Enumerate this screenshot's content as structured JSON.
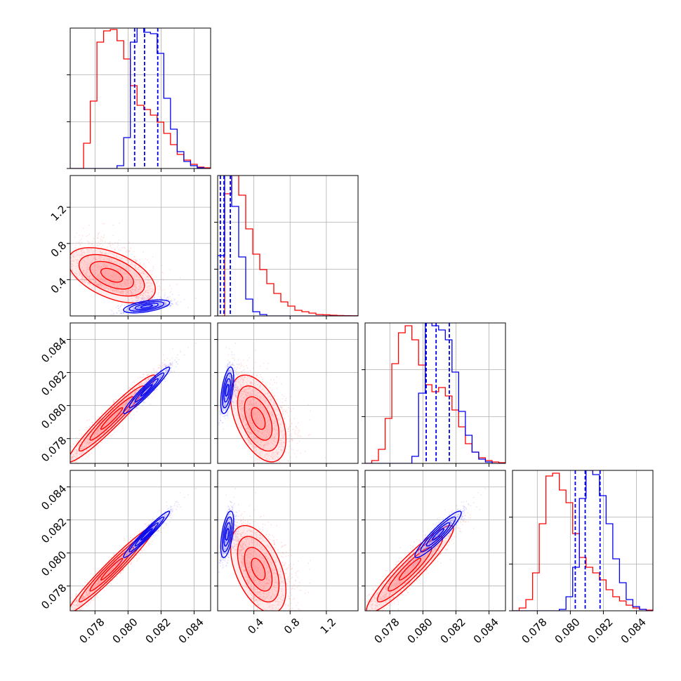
{
  "chart_data": {
    "type": "corner",
    "grid": true,
    "colors": {
      "red": "#ff0000",
      "blue": "#0000ee",
      "red_fill": "#ff9a9a",
      "scatter_red": "#ff8080",
      "scatter_blue": "#8080ff"
    },
    "params": [
      {
        "range": [
          0.0765,
          0.085
        ],
        "ticks": [
          0.078,
          0.08,
          0.082,
          0.084
        ],
        "tick_labels": [
          "0.078",
          "0.080",
          "0.082",
          "0.084"
        ]
      },
      {
        "range": [
          0.0,
          1.55
        ],
        "ticks": [
          0.4,
          0.8,
          1.2
        ],
        "tick_labels": [
          "0.4",
          "0.8",
          "1.2"
        ]
      },
      {
        "range": [
          0.0765,
          0.085
        ],
        "ticks": [
          0.078,
          0.08,
          0.082,
          0.084
        ],
        "tick_labels": [
          "0.078",
          "0.080",
          "0.082",
          "0.084"
        ]
      },
      {
        "range": [
          0.0765,
          0.085
        ],
        "ticks": [
          0.078,
          0.08,
          0.082,
          0.084
        ],
        "tick_labels": [
          "0.078",
          "0.080",
          "0.082",
          "0.084"
        ]
      }
    ],
    "series": [
      {
        "color": "red",
        "means": [
          0.079,
          0.33,
          0.0792,
          0.079
        ],
        "sds": [
          0.0013,
          0.18,
          0.0013,
          0.0013
        ],
        "hist": [
          [
            0,
            0,
            0.18,
            0.48,
            0.9,
            0.98,
            0.99,
            0.91,
            0.78,
            0.59,
            0.45,
            0.42,
            0.38,
            0.33,
            0.25,
            0.17,
            0.1,
            0.06,
            0.03,
            0.01,
            0.005
          ],
          [
            0.0,
            0.87,
            1.0,
            0.86,
            0.62,
            0.44,
            0.33,
            0.23,
            0.16,
            0.1,
            0.07,
            0.04,
            0.03,
            0.02,
            0.01,
            0.008,
            0.005,
            0.003,
            0.002,
            0.001
          ],
          [
            0,
            0.02,
            0.1,
            0.32,
            0.71,
            0.93,
            0.98,
            0.88,
            0.7,
            0.56,
            0.51,
            0.54,
            0.48,
            0.38,
            0.26,
            0.14,
            0.08,
            0.04,
            0.02,
            0.01,
            0.005
          ],
          [
            0,
            0.02,
            0.08,
            0.27,
            0.62,
            0.96,
            0.98,
            0.86,
            0.77,
            0.55,
            0.38,
            0.31,
            0.27,
            0.22,
            0.15,
            0.1,
            0.07,
            0.04,
            0.02,
            0.01,
            0.005
          ]
        ]
      },
      {
        "color": "blue",
        "means": [
          0.0811,
          0.085,
          0.0809,
          0.0811
        ],
        "sds": [
          0.0007,
          0.05,
          0.0007,
          0.0007
        ],
        "quantiles": [
          [
            0.0804,
            0.081,
            0.0818
          ],
          [
            0.03,
            0.07,
            0.14
          ],
          [
            0.0802,
            0.0808,
            0.0816
          ],
          [
            0.0803,
            0.0809,
            0.0818
          ]
        ],
        "hist": [
          [
            0,
            0,
            0,
            0,
            0,
            0,
            0,
            0.02,
            0.22,
            0.9,
            1.0,
            0.97,
            0.96,
            0.82,
            0.5,
            0.28,
            0.12,
            0.05,
            0.02,
            0.005,
            0
          ],
          [
            0.43,
            1.0,
            0.78,
            0.42,
            0.12,
            0.03,
            0.01,
            0,
            0,
            0,
            0,
            0,
            0,
            0,
            0,
            0,
            0,
            0,
            0,
            0
          ],
          [
            0,
            0,
            0,
            0,
            0,
            0,
            0,
            0.05,
            0.5,
            1.0,
            0.98,
            0.95,
            0.88,
            0.65,
            0.37,
            0.2,
            0.08,
            0.03,
            0.01,
            0,
            0
          ],
          [
            0,
            0,
            0,
            0,
            0,
            0,
            0,
            0.01,
            0.1,
            0.31,
            0.8,
            1.0,
            0.97,
            0.82,
            0.62,
            0.37,
            0.2,
            0.08,
            0.03,
            0.01,
            0
          ]
        ]
      }
    ]
  }
}
